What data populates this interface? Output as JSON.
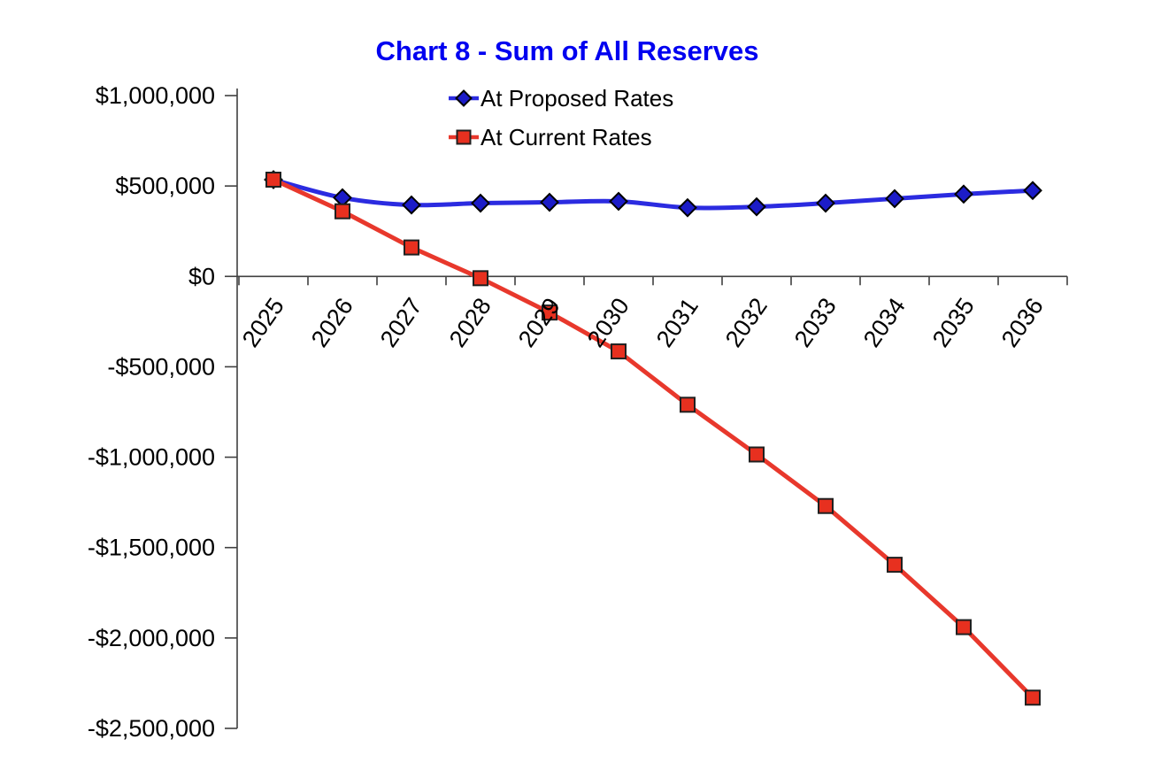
{
  "chart_data": {
    "type": "line",
    "title": "Chart 8 - Sum of All Reserves",
    "title_color": "#0000F0",
    "background": "#FFFFFF",
    "axis_color": "#404040",
    "gridlines": false,
    "legend": {
      "position": "top-center",
      "items": [
        "At Proposed Rates",
        "At Current Rates"
      ]
    },
    "categories": [
      "2025",
      "2026",
      "2027",
      "2028",
      "2029",
      "2030",
      "2031",
      "2032",
      "2033",
      "2034",
      "2035",
      "2036"
    ],
    "series": [
      {
        "name": "At Proposed Rates",
        "line_color": "#2B2BE0",
        "marker": "diamond",
        "marker_color": "#1C1CC8",
        "marker_edge_color": "#000000",
        "smooth": true,
        "values": [
          535000,
          435000,
          395000,
          405000,
          410000,
          415000,
          380000,
          385000,
          405000,
          430000,
          455000,
          475000
        ]
      },
      {
        "name": "At Current Rates",
        "line_color": "#E8382C",
        "marker": "square",
        "marker_color": "#E7301F",
        "marker_edge_color": "#202020",
        "smooth": false,
        "values": [
          535000,
          360000,
          160000,
          -10000,
          -200000,
          -415000,
          -710000,
          -985000,
          -1270000,
          -1595000,
          -1940000,
          -2330000
        ]
      }
    ],
    "y_axis": {
      "min": -2500000,
      "max": 1000000,
      "tick_step": 500000,
      "tick_labels": [
        "$1,000,000",
        "$500,000",
        "$0",
        "-$500,000",
        "-$1,000,000",
        "-$1,500,000",
        "-$2,000,000",
        "-$2,500,000"
      ]
    },
    "x_axis": {
      "label_rotation_deg": -55,
      "labels": [
        "2025",
        "2026",
        "2027",
        "2028",
        "2029",
        "2030",
        "2031",
        "2032",
        "2033",
        "2034",
        "2035",
        "2036"
      ]
    }
  }
}
